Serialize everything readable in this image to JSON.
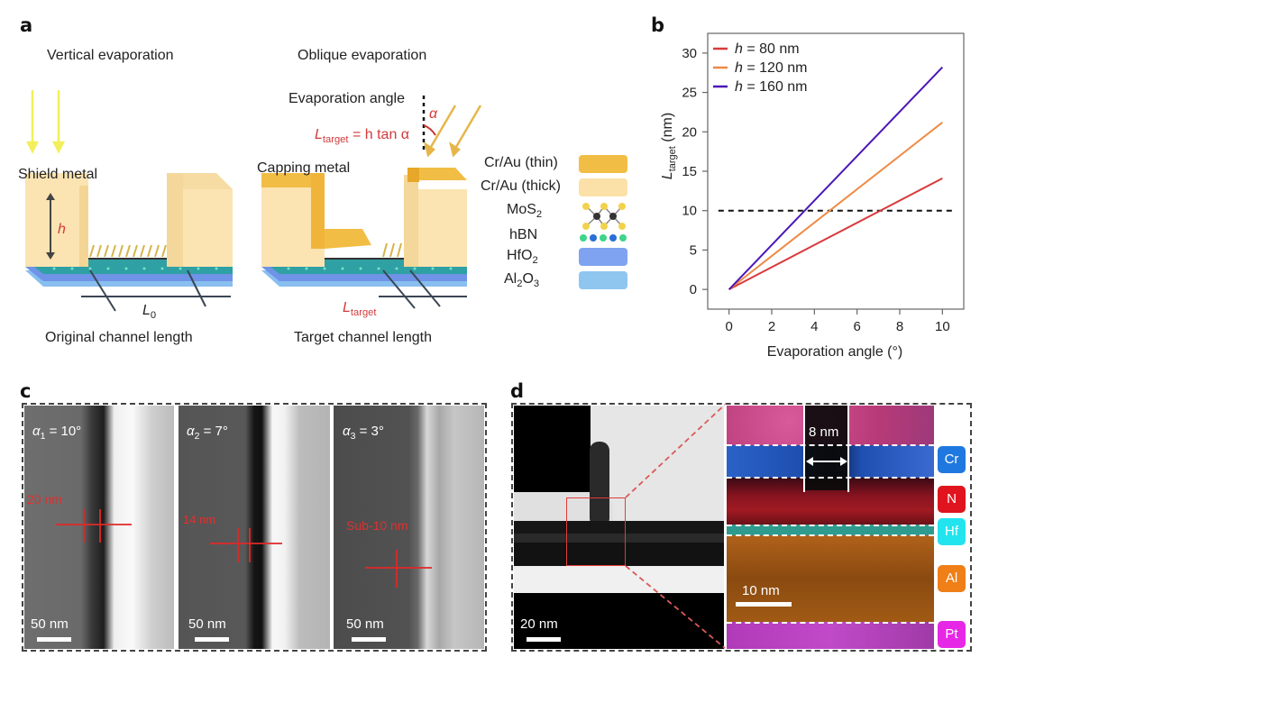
{
  "panels": {
    "a": {
      "letter": "a",
      "vertical_title": "Vertical evaporation",
      "oblique_title": "Oblique evaporation",
      "shield_metal": "Shield metal",
      "capping_metal": "Capping metal",
      "h_label": "h",
      "evaporation_angle": "Evaporation angle",
      "alpha": "α",
      "formula_L": "L",
      "formula_sub": "target",
      "formula_rest": " = h tan α",
      "L0_main": "L",
      "L0_sub": "0",
      "Ltarget_main": "L",
      "Ltarget_sub": "target",
      "original_caption": "Original channel length",
      "target_caption": "Target channel length",
      "legend": [
        {
          "label": "Cr/Au (thin)",
          "color": "#f2bd45",
          "kind": "block"
        },
        {
          "label": "Cr/Au (thick)",
          "color": "#fbe1a8",
          "kind": "block"
        },
        {
          "label_main": "MoS",
          "label_sub": "2",
          "kind": "molecule"
        },
        {
          "label": "hBN",
          "kind": "dots"
        },
        {
          "label_main": "HfO",
          "label_sub": "2",
          "color": "#7fa3f0",
          "kind": "block"
        },
        {
          "label_parts": [
            "Al",
            "2",
            "O",
            "3"
          ],
          "color": "#8fc6ef",
          "kind": "block"
        }
      ]
    },
    "c": {
      "letter": "c",
      "images": [
        {
          "alpha_sym": "α",
          "alpha_sub": "1",
          "angle": " = 10°",
          "measure": "20 nm",
          "scale": "50 nm"
        },
        {
          "alpha_sym": "α",
          "alpha_sub": "2",
          "angle": " = 7°",
          "measure": "14 nm",
          "scale": "50 nm"
        },
        {
          "alpha_sym": "α",
          "alpha_sub": "3",
          "angle": " = 3°",
          "measure": "Sub-10 nm",
          "scale": "50 nm"
        }
      ]
    },
    "d": {
      "letter": "d",
      "tem_scale": "20 nm",
      "eds_scale": "10 nm",
      "gap_label": "8 nm",
      "elements": [
        {
          "label": "Cr",
          "color": "#1f78e0"
        },
        {
          "label": "N",
          "color": "#e0141e"
        },
        {
          "label": "Hf",
          "color": "#22e4ee"
        },
        {
          "label": "Al",
          "color": "#f07f18"
        },
        {
          "label": "Pt",
          "color": "#e628e6"
        }
      ]
    }
  },
  "chart_data": {
    "type": "line",
    "panel_letter": "b",
    "title": "",
    "xlabel": "Evaporation angle (°)",
    "ylabel_main": "L",
    "ylabel_sub": "target",
    "ylabel_unit": " (nm)",
    "xlim": [
      -1,
      11
    ],
    "ylim": [
      -2.5,
      32.5
    ],
    "xticks": [
      0,
      2,
      4,
      6,
      8,
      10
    ],
    "yticks": [
      0,
      5,
      10,
      15,
      20,
      25,
      30
    ],
    "grid": false,
    "legend_position": "top-left",
    "reference_line": {
      "y": 10,
      "style": "dashed",
      "color": "#111111"
    },
    "series": [
      {
        "name_var": "h",
        "name_rest": " = 80 nm",
        "color": "#d9393b",
        "x": [
          0,
          10
        ],
        "y": [
          0,
          14.1
        ]
      },
      {
        "name_var": "h",
        "name_rest": " = 120 nm",
        "color": "#ee8a45",
        "x": [
          0,
          10
        ],
        "y": [
          0,
          21.2
        ]
      },
      {
        "name_var": "h",
        "name_rest": " = 160 nm",
        "color": "#4a17b8",
        "x": [
          0,
          10
        ],
        "y": [
          0,
          28.2
        ]
      }
    ]
  }
}
